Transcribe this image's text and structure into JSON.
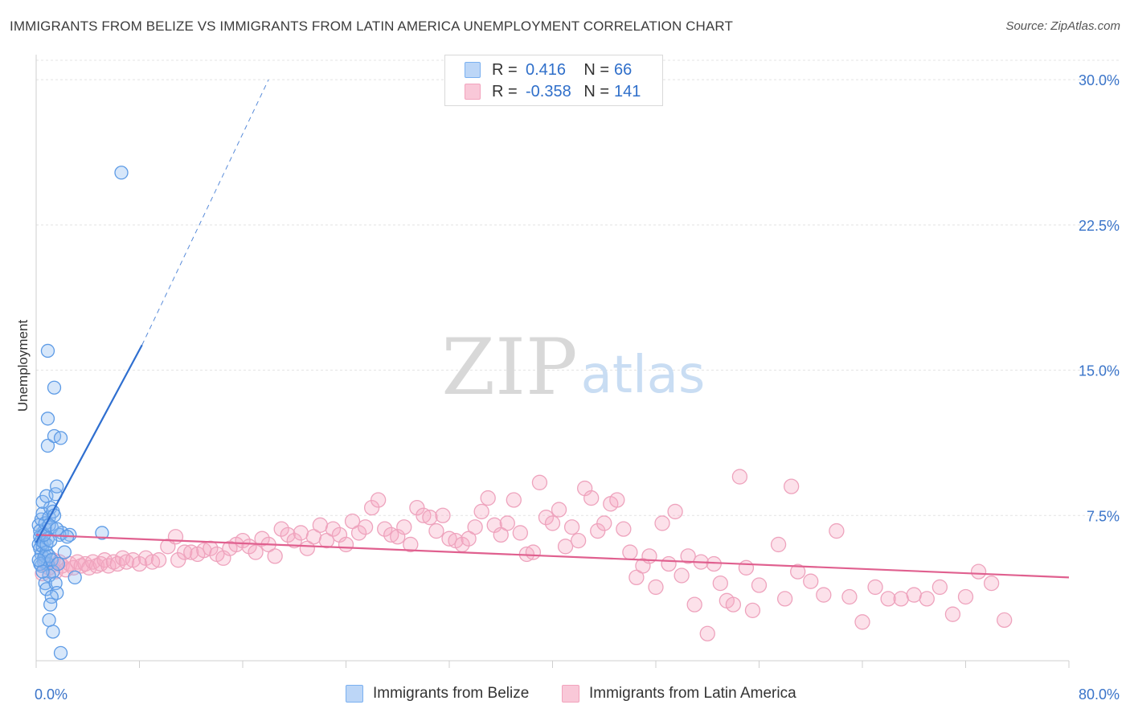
{
  "header": {
    "title": "IMMIGRANTS FROM BELIZE VS IMMIGRANTS FROM LATIN AMERICA UNEMPLOYMENT CORRELATION CHART",
    "source": "Source: ZipAtlas.com"
  },
  "watermark": {
    "zip": "ZIP",
    "atlas": "atlas"
  },
  "legend": {
    "rows": [
      {
        "r_label": "R =",
        "r_value": "0.416",
        "n_label": "N =",
        "n_value": "66",
        "color": "#7ab0f0"
      },
      {
        "r_label": "R =",
        "r_value": "-0.358",
        "n_label": "N =",
        "n_value": "141",
        "color": "#f2a3bd"
      }
    ]
  },
  "bottom_legend": {
    "series1": "Immigrants from Belize",
    "series2": "Immigrants from Latin America"
  },
  "chart_data": {
    "type": "scatter",
    "title": "IMMIGRANTS FROM BELIZE VS IMMIGRANTS FROM LATIN AMERICA UNEMPLOYMENT CORRELATION CHART",
    "xlabel": "",
    "ylabel": "Unemployment",
    "xlim": [
      0,
      80
    ],
    "ylim": [
      0,
      31
    ],
    "x_tick_labels": [
      "0.0%",
      "80.0%"
    ],
    "y_ticks": [
      7.5,
      15.0,
      22.5,
      30.0
    ],
    "y_tick_labels": [
      "7.5%",
      "15.0%",
      "22.5%",
      "30.0%"
    ],
    "grid": true,
    "series": [
      {
        "name": "Immigrants from Belize",
        "color": "#7ab0f0",
        "line_color": "#2f6fd0",
        "trend": {
          "x0": 0,
          "y0": 6.1,
          "x1": 8.2,
          "y1": 16.3,
          "dash_x1": 18,
          "dash_y1": 30.0
        },
        "points": [
          [
            0.2,
            6.0
          ],
          [
            0.3,
            5.8
          ],
          [
            0.3,
            6.4
          ],
          [
            0.4,
            5.5
          ],
          [
            0.4,
            6.2
          ],
          [
            0.5,
            5.9
          ],
          [
            0.5,
            6.6
          ],
          [
            0.6,
            5.3
          ],
          [
            0.6,
            6.1
          ],
          [
            0.7,
            6.8
          ],
          [
            0.2,
            7.0
          ],
          [
            0.3,
            6.7
          ],
          [
            0.4,
            7.3
          ],
          [
            0.5,
            7.6
          ],
          [
            0.7,
            7.1
          ],
          [
            0.8,
            5.6
          ],
          [
            0.9,
            6.3
          ],
          [
            1.0,
            7.4
          ],
          [
            1.1,
            7.9
          ],
          [
            1.2,
            6.9
          ],
          [
            0.5,
            8.2
          ],
          [
            0.8,
            8.5
          ],
          [
            1.5,
            8.6
          ],
          [
            1.6,
            9.0
          ],
          [
            1.3,
            7.7
          ],
          [
            1.4,
            7.5
          ],
          [
            2.0,
            6.6
          ],
          [
            2.6,
            6.5
          ],
          [
            2.2,
            5.6
          ],
          [
            0.9,
            5.0
          ],
          [
            0.6,
            5.1
          ],
          [
            0.4,
            4.9
          ],
          [
            0.7,
            5.4
          ],
          [
            1.0,
            5.4
          ],
          [
            1.2,
            5.2
          ],
          [
            0.8,
            6.0
          ],
          [
            1.3,
            4.6
          ],
          [
            1.0,
            4.4
          ],
          [
            0.7,
            4.0
          ],
          [
            0.8,
            3.7
          ],
          [
            1.5,
            4.0
          ],
          [
            1.6,
            3.5
          ],
          [
            1.2,
            3.3
          ],
          [
            1.1,
            2.9
          ],
          [
            1.0,
            2.1
          ],
          [
            1.3,
            1.5
          ],
          [
            1.9,
            0.4
          ],
          [
            0.9,
            11.1
          ],
          [
            1.4,
            11.6
          ],
          [
            1.9,
            11.5
          ],
          [
            0.9,
            12.5
          ],
          [
            1.4,
            14.1
          ],
          [
            0.9,
            16.0
          ],
          [
            6.6,
            25.2
          ],
          [
            5.1,
            6.6
          ],
          [
            3.0,
            4.3
          ],
          [
            1.8,
            6.5
          ],
          [
            1.1,
            6.2
          ],
          [
            0.3,
            5.0
          ],
          [
            0.6,
            6.5
          ],
          [
            1.7,
            5.0
          ],
          [
            2.4,
            6.4
          ],
          [
            0.5,
            4.6
          ],
          [
            0.2,
            5.2
          ],
          [
            1.0,
            7.0
          ],
          [
            1.6,
            6.8
          ]
        ]
      },
      {
        "name": "Immigrants from Latin America",
        "color": "#f2a3bd",
        "line_color": "#e0608f",
        "trend": {
          "x0": 0,
          "y0": 6.5,
          "x1": 80,
          "y1": 4.3
        },
        "points": [
          [
            0.5,
            4.5
          ],
          [
            0.8,
            5.0
          ],
          [
            1.0,
            4.8
          ],
          [
            1.3,
            5.2
          ],
          [
            1.5,
            4.6
          ],
          [
            1.8,
            5.1
          ],
          [
            2.0,
            4.9
          ],
          [
            2.3,
            4.7
          ],
          [
            2.6,
            5.0
          ],
          [
            2.9,
            4.8
          ],
          [
            3.2,
            5.1
          ],
          [
            3.5,
            4.9
          ],
          [
            3.8,
            5.0
          ],
          [
            4.1,
            4.8
          ],
          [
            4.4,
            5.1
          ],
          [
            4.7,
            4.9
          ],
          [
            5.0,
            5.0
          ],
          [
            5.3,
            5.2
          ],
          [
            5.6,
            4.9
          ],
          [
            6.0,
            5.1
          ],
          [
            6.3,
            5.0
          ],
          [
            6.7,
            5.3
          ],
          [
            7.0,
            5.1
          ],
          [
            7.5,
            5.2
          ],
          [
            8.0,
            5.0
          ],
          [
            8.5,
            5.3
          ],
          [
            9.0,
            5.1
          ],
          [
            9.5,
            5.2
          ],
          [
            10.2,
            5.9
          ],
          [
            10.8,
            6.4
          ],
          [
            11.0,
            5.2
          ],
          [
            11.5,
            5.6
          ],
          [
            12.0,
            5.6
          ],
          [
            12.5,
            5.5
          ],
          [
            13.0,
            5.7
          ],
          [
            13.5,
            5.8
          ],
          [
            14.0,
            5.5
          ],
          [
            14.5,
            5.3
          ],
          [
            15.0,
            5.8
          ],
          [
            15.5,
            6.0
          ],
          [
            16.0,
            6.2
          ],
          [
            16.5,
            5.9
          ],
          [
            17.0,
            5.6
          ],
          [
            17.5,
            6.3
          ],
          [
            18.0,
            6.0
          ],
          [
            18.5,
            5.4
          ],
          [
            19.0,
            6.8
          ],
          [
            19.5,
            6.5
          ],
          [
            20.0,
            6.2
          ],
          [
            20.5,
            6.6
          ],
          [
            21.0,
            5.8
          ],
          [
            21.5,
            6.4
          ],
          [
            22.0,
            7.0
          ],
          [
            22.5,
            6.2
          ],
          [
            23.0,
            6.8
          ],
          [
            23.5,
            6.5
          ],
          [
            24.0,
            6.0
          ],
          [
            24.5,
            7.2
          ],
          [
            25.0,
            6.6
          ],
          [
            25.5,
            6.9
          ],
          [
            26.0,
            7.9
          ],
          [
            26.5,
            8.3
          ],
          [
            27.0,
            6.8
          ],
          [
            27.5,
            6.5
          ],
          [
            28.0,
            6.4
          ],
          [
            28.5,
            6.9
          ],
          [
            29.0,
            6.0
          ],
          [
            29.5,
            7.9
          ],
          [
            30.0,
            7.5
          ],
          [
            30.5,
            7.4
          ],
          [
            31.0,
            6.7
          ],
          [
            31.5,
            7.5
          ],
          [
            32.0,
            6.3
          ],
          [
            32.5,
            6.2
          ],
          [
            33.0,
            6.0
          ],
          [
            33.5,
            6.3
          ],
          [
            34.0,
            6.9
          ],
          [
            34.5,
            7.7
          ],
          [
            35.0,
            8.4
          ],
          [
            35.5,
            7.0
          ],
          [
            36.0,
            6.5
          ],
          [
            36.5,
            7.1
          ],
          [
            37.0,
            8.3
          ],
          [
            37.5,
            6.6
          ],
          [
            38.0,
            5.5
          ],
          [
            38.5,
            5.6
          ],
          [
            39.0,
            9.2
          ],
          [
            39.5,
            7.4
          ],
          [
            40.0,
            7.1
          ],
          [
            40.5,
            7.8
          ],
          [
            41.0,
            5.9
          ],
          [
            41.5,
            6.9
          ],
          [
            42.0,
            6.2
          ],
          [
            42.5,
            8.9
          ],
          [
            43.0,
            8.4
          ],
          [
            43.5,
            6.7
          ],
          [
            44.0,
            7.1
          ],
          [
            44.5,
            8.1
          ],
          [
            45.0,
            8.3
          ],
          [
            45.5,
            6.8
          ],
          [
            46.0,
            5.6
          ],
          [
            46.5,
            4.3
          ],
          [
            47.0,
            4.9
          ],
          [
            47.5,
            5.4
          ],
          [
            48.0,
            3.8
          ],
          [
            48.5,
            7.1
          ],
          [
            49.0,
            5.0
          ],
          [
            49.5,
            7.7
          ],
          [
            50.0,
            4.4
          ],
          [
            50.5,
            5.4
          ],
          [
            51.0,
            2.9
          ],
          [
            51.5,
            5.1
          ],
          [
            52.0,
            1.4
          ],
          [
            52.5,
            5.0
          ],
          [
            53.0,
            4.0
          ],
          [
            53.5,
            3.1
          ],
          [
            54.0,
            2.9
          ],
          [
            54.5,
            9.5
          ],
          [
            55.0,
            4.8
          ],
          [
            55.5,
            2.6
          ],
          [
            56.0,
            3.9
          ],
          [
            57.5,
            6.0
          ],
          [
            58.0,
            3.2
          ],
          [
            58.5,
            9.0
          ],
          [
            59.0,
            4.6
          ],
          [
            60.0,
            4.1
          ],
          [
            61.0,
            3.4
          ],
          [
            62.0,
            6.7
          ],
          [
            63.0,
            3.3
          ],
          [
            64.0,
            2.0
          ],
          [
            65.0,
            3.8
          ],
          [
            66.0,
            3.2
          ],
          [
            67.0,
            3.2
          ],
          [
            68.0,
            3.4
          ],
          [
            69.0,
            3.2
          ],
          [
            70.0,
            3.8
          ],
          [
            71.0,
            2.4
          ],
          [
            72.0,
            3.3
          ],
          [
            73.0,
            4.6
          ],
          [
            74.0,
            4.0
          ],
          [
            75.0,
            2.1
          ]
        ]
      }
    ]
  }
}
